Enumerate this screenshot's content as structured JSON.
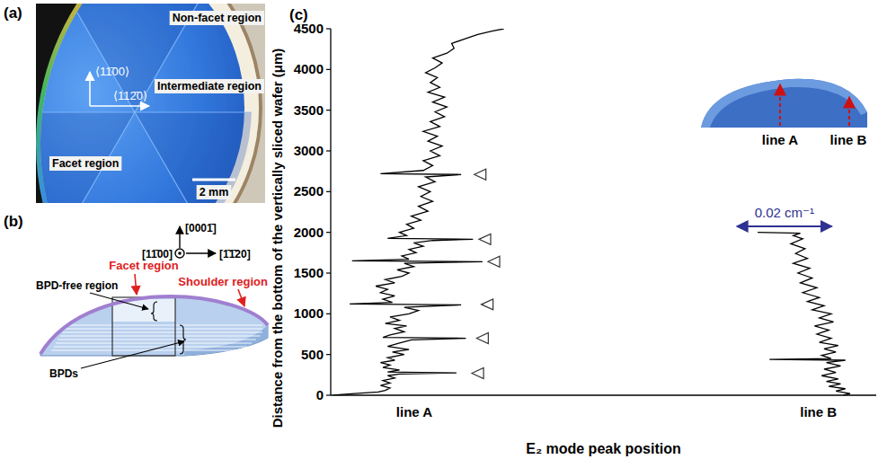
{
  "panel_a": {
    "label": "(a)",
    "regions": {
      "non_facet": "Non-facet region",
      "intermediate": "Intermediate region",
      "facet": "Facet region"
    },
    "directions": {
      "vertical": "⟨11̄00⟩",
      "horizontal": "⟨112̄0⟩"
    },
    "scale_bar": "2 mm"
  },
  "panel_b": {
    "label": "(b)",
    "facet": "Facet region",
    "shoulder": "Shoulder region",
    "bpd_free": "BPD-free region",
    "bpds": "BPDs",
    "directions": {
      "up": "[0001̄]",
      "out": "[11̄00]",
      "right": "[1̄1̄20]"
    }
  },
  "chart_data": {
    "type": "line",
    "panel_label": "(c)",
    "xlabel": "E₂ mode peak position",
    "ylabel": "Distance from the bottom of the vertically sliced wafer (μm)",
    "xlim": [
      0,
      0.115
    ],
    "xticks": [],
    "ylim": [
      0,
      4500
    ],
    "yticks": [
      0,
      500,
      1000,
      1500,
      2000,
      2500,
      3000,
      3500,
      4000,
      4500
    ],
    "tick_labels": "y",
    "series": [
      {
        "name": "line A",
        "color": "#000000",
        "x": [
          0.0005,
          0.005,
          0.01,
          0.0115,
          0.0125,
          0.0105,
          0.0125,
          0.011,
          0.0135,
          0.012,
          0.0145,
          0.0265,
          0.012,
          0.0145,
          0.011,
          0.0125,
          0.0105,
          0.0135,
          0.012,
          0.0155,
          0.013,
          0.0165,
          0.012,
          0.0145,
          0.017,
          0.0285,
          0.011,
          0.0125,
          0.0155,
          0.0135,
          0.016,
          0.0115,
          0.0145,
          0.0125,
          0.0165,
          0.0185,
          0.0155,
          0.0275,
          0.004,
          0.013,
          0.011,
          0.0135,
          0.0105,
          0.012,
          0.0095,
          0.0135,
          0.0115,
          0.015,
          0.0165,
          0.014,
          0.0175,
          0.0155,
          0.032,
          0.0045,
          0.0165,
          0.015,
          0.018,
          0.0165,
          0.0195,
          0.0175,
          0.0215,
          0.03,
          0.012,
          0.016,
          0.0145,
          0.0175,
          0.016,
          0.019,
          0.017,
          0.0205,
          0.0185,
          0.0215,
          0.019,
          0.021,
          0.0185,
          0.022,
          0.02,
          0.0275,
          0.0105,
          0.0195,
          0.0215,
          0.0195,
          0.023,
          0.021,
          0.0235,
          0.0205,
          0.0225,
          0.0195,
          0.023,
          0.021,
          0.024,
          0.022,
          0.0245,
          0.0215,
          0.024,
          0.0205,
          0.023,
          0.021,
          0.0225,
          0.02,
          0.022,
          0.0235,
          0.0215,
          0.0245,
          0.026,
          0.0255,
          0.0285,
          0.031,
          0.034,
          0.0365
        ],
        "values": [
          0,
          20,
          40,
          60,
          90,
          120,
          150,
          180,
          210,
          240,
          260,
          275,
          285,
          310,
          340,
          370,
          400,
          430,
          460,
          500,
          530,
          560,
          600,
          640,
          680,
          700,
          710,
          740,
          780,
          820,
          850,
          880,
          920,
          960,
          1000,
          1040,
          1080,
          1110,
          1120,
          1140,
          1180,
          1220,
          1260,
          1300,
          1340,
          1380,
          1420,
          1460,
          1500,
          1540,
          1580,
          1620,
          1640,
          1650,
          1670,
          1710,
          1750,
          1790,
          1830,
          1870,
          1900,
          1915,
          1925,
          1960,
          2000,
          2050,
          2100,
          2150,
          2200,
          2260,
          2320,
          2380,
          2440,
          2500,
          2560,
          2620,
          2680,
          2710,
          2720,
          2760,
          2820,
          2880,
          2940,
          3000,
          3060,
          3120,
          3180,
          3240,
          3300,
          3360,
          3420,
          3480,
          3540,
          3600,
          3660,
          3720,
          3780,
          3840,
          3900,
          3960,
          4020,
          4080,
          4140,
          4200,
          4260,
          4320,
          4380,
          4430,
          4470,
          4500
        ]
      },
      {
        "name": "line B",
        "color": "#000000",
        "x": [
          0.108,
          0.1095,
          0.1065,
          0.1085,
          0.105,
          0.1075,
          0.1045,
          0.107,
          0.1035,
          0.1065,
          0.104,
          0.1075,
          0.1045,
          0.1085,
          0.0925,
          0.1055,
          0.1035,
          0.1065,
          0.104,
          0.107,
          0.103,
          0.1055,
          0.1025,
          0.105,
          0.102,
          0.106,
          0.103,
          0.1055,
          0.1015,
          0.104,
          0.1005,
          0.103,
          0.0995,
          0.1025,
          0.099,
          0.1015,
          0.0985,
          0.101,
          0.0975,
          0.1005,
          0.098,
          0.1,
          0.097,
          0.0995,
          0.0975,
          0.099,
          0.09
        ],
        "values": [
          0,
          20,
          50,
          80,
          110,
          140,
          170,
          200,
          240,
          280,
          320,
          360,
          400,
          430,
          440,
          450,
          490,
          530,
          570,
          610,
          650,
          700,
          750,
          800,
          850,
          900,
          950,
          1000,
          1050,
          1100,
          1150,
          1200,
          1260,
          1320,
          1380,
          1440,
          1500,
          1560,
          1620,
          1680,
          1740,
          1800,
          1860,
          1920,
          1960,
          1990,
          2000
        ]
      }
    ],
    "arrows": [
      {
        "x": 0.029,
        "y": 270
      },
      {
        "x": 0.03,
        "y": 700
      },
      {
        "x": 0.031,
        "y": 1115
      },
      {
        "x": 0.0324,
        "y": 1640
      },
      {
        "x": 0.0305,
        "y": 1915
      },
      {
        "x": 0.0295,
        "y": 2710
      }
    ],
    "scale_bar": {
      "value": 0.02,
      "label": "0.02 cm⁻¹"
    }
  }
}
